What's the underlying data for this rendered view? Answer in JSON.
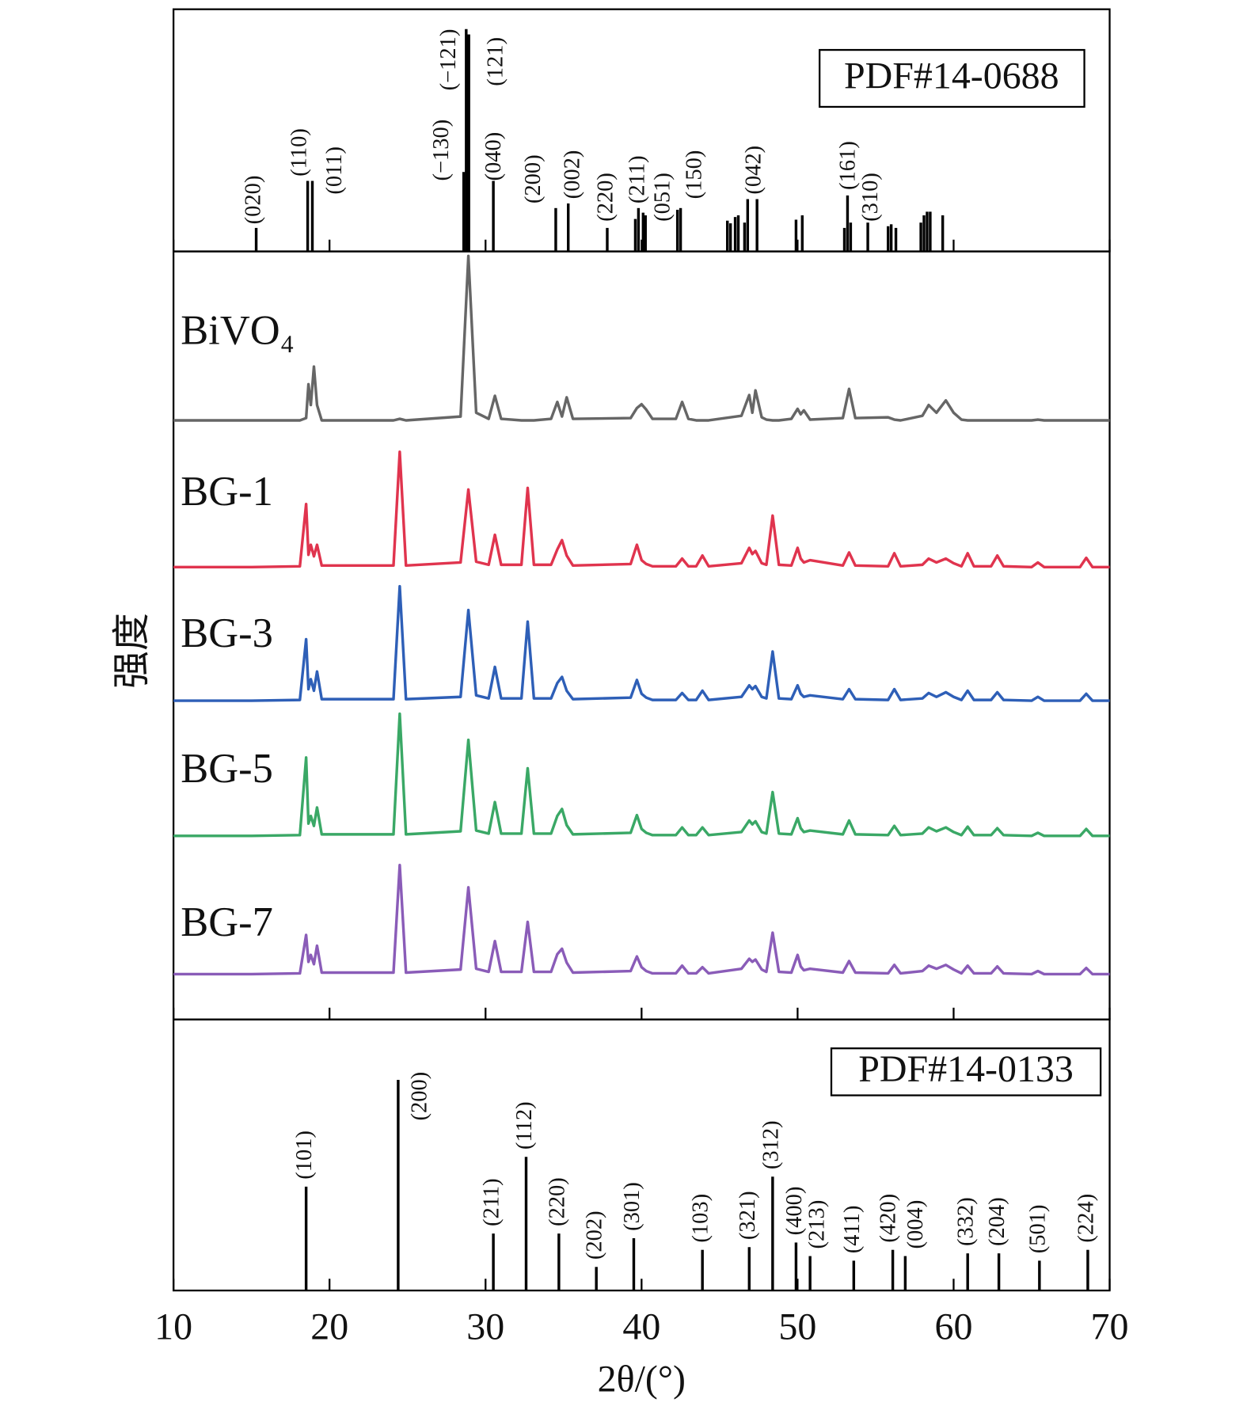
{
  "chart_data": [
    {
      "type": "stem",
      "label": "PDF#14-0688",
      "xlim": [
        10,
        70
      ],
      "ylim": [
        0,
        100
      ],
      "color": "#000000",
      "x": [
        15.3,
        18.6,
        18.9,
        28.6,
        28.76,
        28.93,
        30.5,
        34.5,
        35.3,
        37.8,
        39.6,
        39.8,
        40.1,
        40.25,
        42.3,
        42.5,
        45.5,
        45.7,
        46.0,
        46.2,
        46.6,
        46.8,
        47.4,
        49.9,
        50.3,
        53.0,
        53.2,
        53.4,
        54.5,
        55.8,
        56.0,
        56.3,
        57.9,
        58.1,
        58.3,
        58.5,
        59.3
      ],
      "values": [
        9.7,
        29.1,
        29.1,
        32.8,
        91.8,
        89.6,
        29.1,
        17.9,
        19.8,
        9.7,
        13.4,
        17.9,
        16,
        14.9,
        17.2,
        17.9,
        12.7,
        11.6,
        14.2,
        14.9,
        11.9,
        21.6,
        21.6,
        13.1,
        14.9,
        9.7,
        23.1,
        11.9,
        11.9,
        10.4,
        11.2,
        9.7,
        11.9,
        14.9,
        16.4,
        16.4,
        14.9
      ],
      "peak_labels": [
        "(020)",
        "(110)",
        "(011)",
        "(−130)",
        "(−121)",
        "(121)",
        "(040)",
        "(200)",
        "(002)",
        "(220)",
        null,
        "(211)",
        null,
        "(051)",
        null,
        "(150)",
        null,
        null,
        null,
        null,
        null,
        null,
        "(042)",
        null,
        null,
        null,
        "(161)",
        null,
        "(310)",
        null,
        null,
        null,
        null,
        null,
        null,
        null,
        null
      ]
    },
    {
      "type": "line",
      "ylabel": "强度",
      "xlim": [
        10,
        70
      ],
      "ylim": [
        0,
        100
      ],
      "x": [
        10,
        15,
        18.1,
        18.5,
        18.65,
        18.8,
        19.0,
        19.2,
        19.5,
        24.1,
        24.5,
        24.9,
        28.4,
        28.9,
        29.4,
        30.2,
        30.6,
        31.0,
        32.3,
        32.7,
        33.1,
        34.2,
        34.6,
        34.9,
        35.2,
        35.6,
        39.3,
        39.7,
        40.0,
        40.3,
        40.7,
        42.2,
        42.6,
        43.0,
        43.5,
        43.9,
        44.3,
        46.4,
        46.9,
        47.1,
        47.3,
        47.7,
        48.0,
        48.4,
        48.8,
        49.6,
        50.0,
        50.2,
        50.4,
        50.8,
        52.9,
        53.3,
        53.7,
        55.8,
        56.2,
        56.6,
        58.0,
        58.4,
        58.9,
        59.5,
        60.0,
        60.5,
        60.9,
        61.3,
        62.4,
        62.8,
        63.2,
        65.0,
        65.4,
        65.8,
        68.1,
        68.5,
        68.9,
        70
      ],
      "series": [
        {
          "name": "BiVO₄",
          "color": "#666666",
          "values": [
            78,
            78,
            78,
            78.3,
            82.7,
            80,
            85,
            80,
            78,
            78,
            78.2,
            78,
            78.5,
            99.4,
            79,
            78.2,
            81.2,
            78.2,
            78,
            78,
            78,
            78.2,
            80.4,
            78.5,
            81,
            78.2,
            78.3,
            79.6,
            80.1,
            79.4,
            78.2,
            78.2,
            80.4,
            78.2,
            78,
            78,
            78,
            78.6,
            81.3,
            79,
            81.9,
            78.4,
            78.1,
            78,
            78,
            78.2,
            79.5,
            78.8,
            79.3,
            78.1,
            78.3,
            82.1,
            78.3,
            78.4,
            78.1,
            78,
            78.6,
            80,
            79,
            80.6,
            79,
            78.1,
            78,
            78,
            78,
            78,
            78,
            78,
            78.1,
            78,
            78,
            78,
            78,
            78
          ]
        },
        {
          "name": "BG-1",
          "color": "#e0344e",
          "values": [
            58.9,
            58.9,
            59,
            67.1,
            60.5,
            61.8,
            60.3,
            61.8,
            59.1,
            59.1,
            73.9,
            59.1,
            59.5,
            69,
            59.6,
            59.2,
            63.1,
            59.2,
            59.2,
            69.2,
            59.2,
            59.2,
            61.2,
            62.4,
            60.4,
            59.1,
            59.3,
            61.8,
            59.8,
            59.3,
            59,
            59,
            60,
            59,
            59,
            60.4,
            59,
            59.4,
            61.4,
            60.6,
            61,
            59.4,
            59.2,
            65.6,
            59.2,
            59.1,
            61.4,
            60,
            59.5,
            59.8,
            59.1,
            60.8,
            59.1,
            59,
            60.7,
            59,
            59.2,
            60,
            59.5,
            60,
            59.4,
            59,
            60.7,
            59,
            59,
            60.4,
            59,
            58.9,
            59.5,
            58.9,
            58.9,
            60.1,
            58.9,
            58.9
          ]
        },
        {
          "name": "BG-3",
          "color": "#2e5fb7",
          "values": [
            41.5,
            41.5,
            41.6,
            49.5,
            43,
            44.3,
            42.8,
            45.3,
            41.7,
            41.7,
            56.4,
            41.7,
            42,
            53.3,
            42.2,
            41.8,
            45.9,
            41.8,
            41.8,
            51.8,
            41.8,
            41.8,
            43.8,
            44.6,
            42.8,
            41.7,
            41.9,
            44.2,
            42.4,
            41.9,
            41.6,
            41.6,
            42.5,
            41.6,
            41.6,
            42.8,
            41.6,
            42,
            43.5,
            43,
            43.4,
            42,
            41.8,
            47.9,
            41.8,
            41.7,
            43.5,
            42.4,
            42,
            42.2,
            41.7,
            43,
            41.7,
            41.6,
            43,
            41.6,
            41.8,
            42.5,
            42,
            42.6,
            42,
            41.6,
            42.8,
            41.6,
            41.6,
            42.6,
            41.6,
            41.5,
            42,
            41.5,
            41.5,
            42.4,
            41.5,
            41.5
          ]
        },
        {
          "name": "BG-5",
          "color": "#3aa866",
          "values": [
            23.9,
            23.9,
            24,
            34.1,
            25.5,
            26.5,
            25.2,
            27.6,
            24.1,
            24.1,
            39.8,
            24.1,
            24.5,
            36.4,
            24.6,
            24.2,
            28.3,
            24.2,
            24.2,
            32.7,
            24.2,
            24.2,
            26.5,
            27.4,
            25.3,
            24.1,
            24.3,
            26.6,
            24.8,
            24.3,
            24,
            24,
            25,
            24,
            24,
            25,
            24,
            24.4,
            25.9,
            25.4,
            25.8,
            24.4,
            24.2,
            29.6,
            24.2,
            24.1,
            26.2,
            24.9,
            24.4,
            24.6,
            24.1,
            25.9,
            24.1,
            24,
            25.2,
            24,
            24.2,
            25,
            24.5,
            25,
            24.4,
            24,
            25.1,
            24,
            24,
            24.9,
            24,
            23.9,
            24.3,
            23.9,
            23.9,
            24.8,
            23.9,
            23.9
          ]
        },
        {
          "name": "BG-7",
          "color": "#8a5cb8",
          "values": [
            5.9,
            5.9,
            6,
            11,
            7.5,
            8.4,
            7.2,
            9.6,
            6.1,
            6.1,
            20.1,
            6.1,
            6.5,
            17.2,
            6.6,
            6.2,
            10.2,
            6.2,
            6.2,
            12.7,
            6.2,
            6.2,
            8.5,
            9.2,
            7.4,
            6.1,
            6.3,
            8.2,
            6.8,
            6.3,
            6,
            6,
            7,
            6,
            6,
            6.8,
            6,
            6.6,
            7.9,
            7.5,
            7.8,
            6.5,
            6.2,
            11.3,
            6.2,
            6.1,
            8.4,
            6.9,
            6.4,
            6.6,
            6.1,
            7.6,
            6.1,
            6,
            7.1,
            6,
            6.3,
            7,
            6.6,
            7.1,
            6.5,
            6,
            7,
            6,
            6,
            6.9,
            6,
            5.9,
            6.3,
            5.9,
            5.9,
            6.7,
            5.9,
            5.9
          ]
        }
      ]
    },
    {
      "type": "stem",
      "label": "PDF#14-0133",
      "xlabel": "2θ/(°)",
      "xlim": [
        10,
        70
      ],
      "ylim": [
        0,
        100
      ],
      "color": "#000000",
      "xticks": [
        10,
        20,
        30,
        40,
        50,
        60,
        70
      ],
      "x": [
        18.5,
        24.4,
        30.5,
        32.6,
        34.7,
        37.1,
        39.5,
        43.9,
        46.9,
        48.4,
        49.9,
        50.8,
        53.6,
        56.1,
        56.9,
        60.9,
        62.9,
        65.5,
        68.6
      ],
      "values": [
        38.3,
        77.7,
        21,
        49.3,
        21,
        8.7,
        19.3,
        15,
        16,
        42,
        17.7,
        12.7,
        11,
        15,
        12.7,
        13.7,
        13.7,
        11,
        15
      ],
      "peak_labels": [
        "(101)",
        "(200)",
        "(211)",
        "(112)",
        "(220)",
        "(202)",
        "(301)",
        "(103)",
        "(321)",
        "(312)",
        "(400)",
        "(213)",
        "(411)",
        "(420)",
        "(004)",
        "(332)",
        "(204)",
        "(501)",
        "(224)"
      ]
    }
  ]
}
